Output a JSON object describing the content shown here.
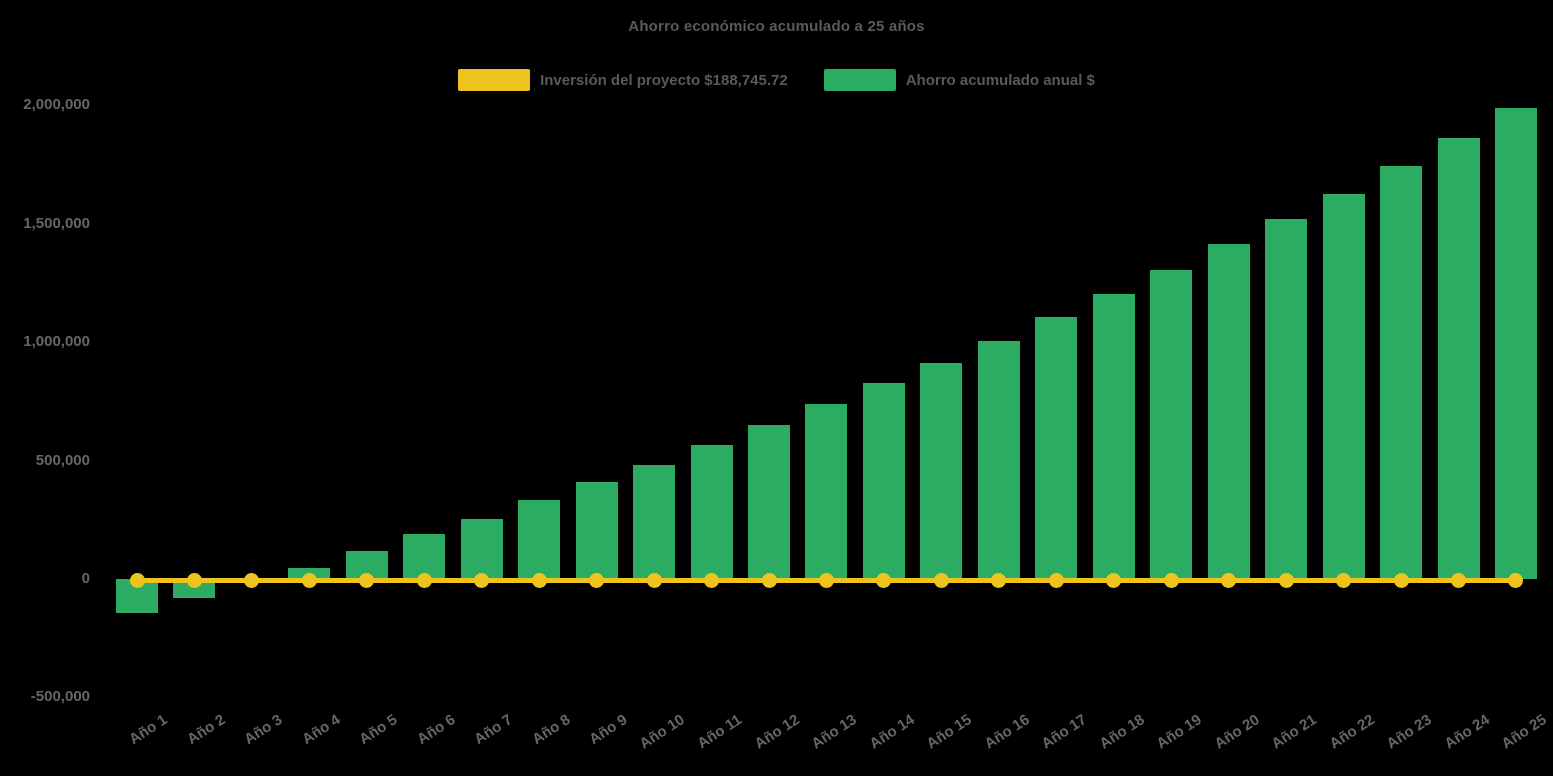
{
  "chart": {
    "title": "Ahorro económico acumulado a 25 años",
    "legend": [
      {
        "label": "Inversión del proyecto $188,745.72",
        "color": "#EEC31D"
      },
      {
        "label": "Ahorro acumulado anual $",
        "color": "#2BAC62"
      }
    ],
    "colors": {
      "background": "#000000",
      "bar": "#2BAC62",
      "line": "#EEC31D",
      "title_text": "#5A5A5A",
      "axis_text": "#666666"
    }
  },
  "chart_data": {
    "type": "bar",
    "title": "Ahorro económico acumulado a 25 años",
    "categories": [
      "Año 1",
      "Año 2",
      "Año 3",
      "Año 4",
      "Año 5",
      "Año 6",
      "Año 7",
      "Año 8",
      "Año 9",
      "Año 10",
      "Año 11",
      "Año 12",
      "Año 13",
      "Año 14",
      "Año 15",
      "Año 16",
      "Año 17",
      "Año 18",
      "Año 19",
      "Año 20",
      "Año 21",
      "Año 22",
      "Año 23",
      "Año 24",
      "Año 25"
    ],
    "series": [
      {
        "name": "Inversión del proyecto $188,745.72",
        "type": "line",
        "color": "#EEC31D",
        "investment_amount": 188745.72,
        "values": [
          0,
          0,
          0,
          0,
          0,
          0,
          0,
          0,
          0,
          0,
          0,
          0,
          0,
          0,
          0,
          0,
          0,
          0,
          0,
          0,
          0,
          0,
          0,
          0,
          0
        ]
      },
      {
        "name": "Ahorro acumulado anual $",
        "type": "bar",
        "color": "#2BAC62",
        "values": [
          -143000,
          -79000,
          -14000,
          48000,
          117000,
          189000,
          254000,
          332000,
          408000,
          480000,
          564000,
          652000,
          740000,
          826000,
          914000,
          1007000,
          1106000,
          1202000,
          1305000,
          1414000,
          1521000,
          1627000,
          1743000,
          1863000,
          1987000
        ]
      }
    ],
    "xlabel": "",
    "ylabel": "",
    "ylim": [
      -500000,
      2000000
    ],
    "ytick_values": [
      -500000,
      0,
      500000,
      1000000,
      1500000,
      2000000
    ],
    "ytick_labels": [
      "-500,000",
      "0",
      "500,000",
      "1,000,000",
      "1,500,000",
      "2,000,000"
    ],
    "grid": false,
    "legend_position": "top-center",
    "x_label_rotation_deg": -33
  }
}
